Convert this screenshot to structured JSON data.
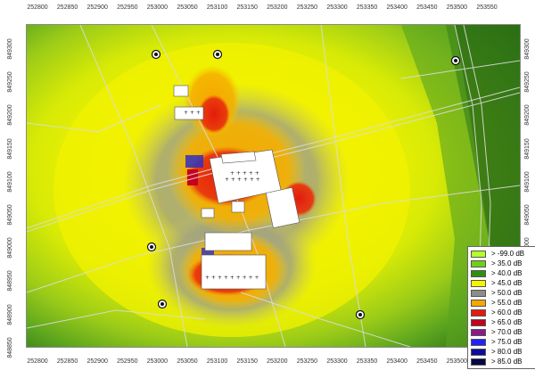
{
  "axes": {
    "x_ticks": [
      "252800",
      "252850",
      "252900",
      "252950",
      "253000",
      "253050",
      "253100",
      "253150",
      "253200",
      "253250",
      "253300",
      "253350",
      "253400",
      "253450",
      "253500",
      "253550"
    ],
    "x_ticks_bottom": [
      "252800",
      "252850",
      "252900",
      "252950",
      "253000",
      "253050",
      "253100",
      "253150",
      "253200",
      "253250",
      "253300",
      "253350",
      "253400",
      "253450",
      "253500"
    ],
    "y_ticks": [
      "849300",
      "849250",
      "849200",
      "849150",
      "849100",
      "849050",
      "849000",
      "848950",
      "848900",
      "848850"
    ]
  },
  "legend": {
    "items": [
      {
        "label": "> -99.0 dB",
        "color": "#b6ff2a"
      },
      {
        "label": ">  35.0 dB",
        "color": "#6fcf1a"
      },
      {
        "label": ">  40.0 dB",
        "color": "#2f8f10"
      },
      {
        "label": ">  45.0 dB",
        "color": "#f5f500"
      },
      {
        "label": ">  50.0 dB",
        "color": "#8c8c8c"
      },
      {
        "label": ">  55.0 dB",
        "color": "#f5a800"
      },
      {
        "label": ">  60.0 dB",
        "color": "#e41b0c"
      },
      {
        "label": ">  65.0 dB",
        "color": "#c4001c"
      },
      {
        "label": ">  70.0 dB",
        "color": "#8a1a8a"
      },
      {
        "label": ">  75.0 dB",
        "color": "#2222ff"
      },
      {
        "label": ">  80.0 dB",
        "color": "#0c0ca0"
      },
      {
        "label": ">  85.0 dB",
        "color": "#070745"
      }
    ]
  },
  "colors": {
    "field_dark_green": "#2a6d14",
    "field_green": "#5aa41f",
    "field_yellow_green": "#c9e30b",
    "field_yellow": "#f2f200",
    "field_grey": "#9a9a7a",
    "field_orange": "#f5a800",
    "field_red": "#e41b0c",
    "building": "#ffffff",
    "road": "#d8d8d8"
  },
  "markers": [
    {
      "name": "measurement-point-1"
    },
    {
      "name": "measurement-point-2"
    },
    {
      "name": "measurement-point-3"
    },
    {
      "name": "measurement-point-4"
    },
    {
      "name": "measurement-point-5"
    },
    {
      "name": "measurement-point-6"
    }
  ]
}
